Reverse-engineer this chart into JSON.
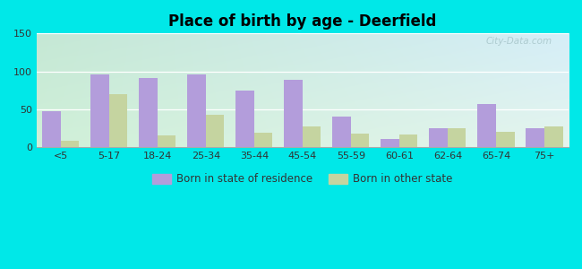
{
  "title": "Place of birth by age - Deerfield",
  "categories": [
    "<5",
    "5-17",
    "18-24",
    "25-34",
    "35-44",
    "45-54",
    "55-59",
    "60-61",
    "62-64",
    "65-74",
    "75+"
  ],
  "born_in_state": [
    47,
    96,
    91,
    96,
    75,
    89,
    40,
    11,
    25,
    57,
    25
  ],
  "born_other_state": [
    8,
    70,
    15,
    43,
    19,
    27,
    18,
    17,
    25,
    20,
    27
  ],
  "color_state": "#b39ddb",
  "color_other": "#c5d4a0",
  "ylim": [
    0,
    150
  ],
  "yticks": [
    0,
    50,
    100,
    150
  ],
  "legend_state": "Born in state of residence",
  "legend_other": "Born in other state",
  "outer_bg": "#00e8e8",
  "watermark": "City-Data.com",
  "bg_top_left": "#c8edd8",
  "bg_top_right": "#d0eef5",
  "bg_bottom_left": "#d8f5d8",
  "bg_bottom_right": "#e8f8f5"
}
